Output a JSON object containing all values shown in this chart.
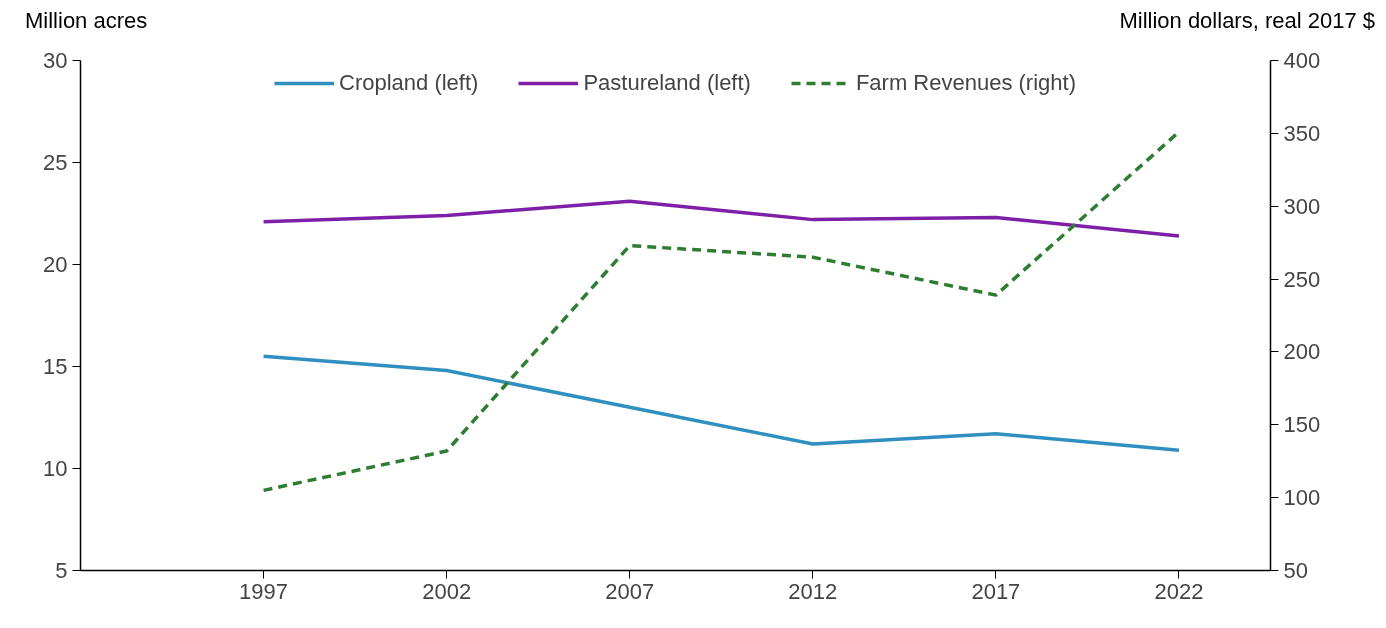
{
  "chart_data": {
    "type": "line",
    "ylabel": "Million acres",
    "y2label": "Million dollars, real 2017 $",
    "x": [
      1997,
      2002,
      2007,
      2012,
      2017,
      2022
    ],
    "xlim": [
      1992,
      2024.5
    ],
    "xticks": [
      1997,
      2002,
      2007,
      2012,
      2017,
      2022
    ],
    "ylim": [
      5,
      30
    ],
    "yticks": [
      5,
      10,
      15,
      20,
      25,
      30
    ],
    "y2lim": [
      50,
      400
    ],
    "y2ticks": [
      50,
      100,
      150,
      200,
      250,
      300,
      350,
      400
    ],
    "grid": false,
    "legend": "top",
    "series": [
      {
        "name": "Cropland (left)",
        "color": "#2e8fc0",
        "values": [
          15.5,
          14.8,
          13.0,
          11.2,
          11.7,
          10.9
        ],
        "line_style": "solid"
      },
      {
        "name": "Pastureland (left)",
        "color": "#7f1fa8",
        "values": [
          22.1,
          22.4,
          23.1,
          22.2,
          22.3,
          21.4
        ],
        "line_style": "solid"
      },
      {
        "name": "Farm Revenues (right)",
        "color": "#2e7d32",
        "values": [
          105,
          132,
          273,
          265,
          239,
          351
        ],
        "line_style": "dashed",
        "axis": "y2"
      }
    ]
  }
}
